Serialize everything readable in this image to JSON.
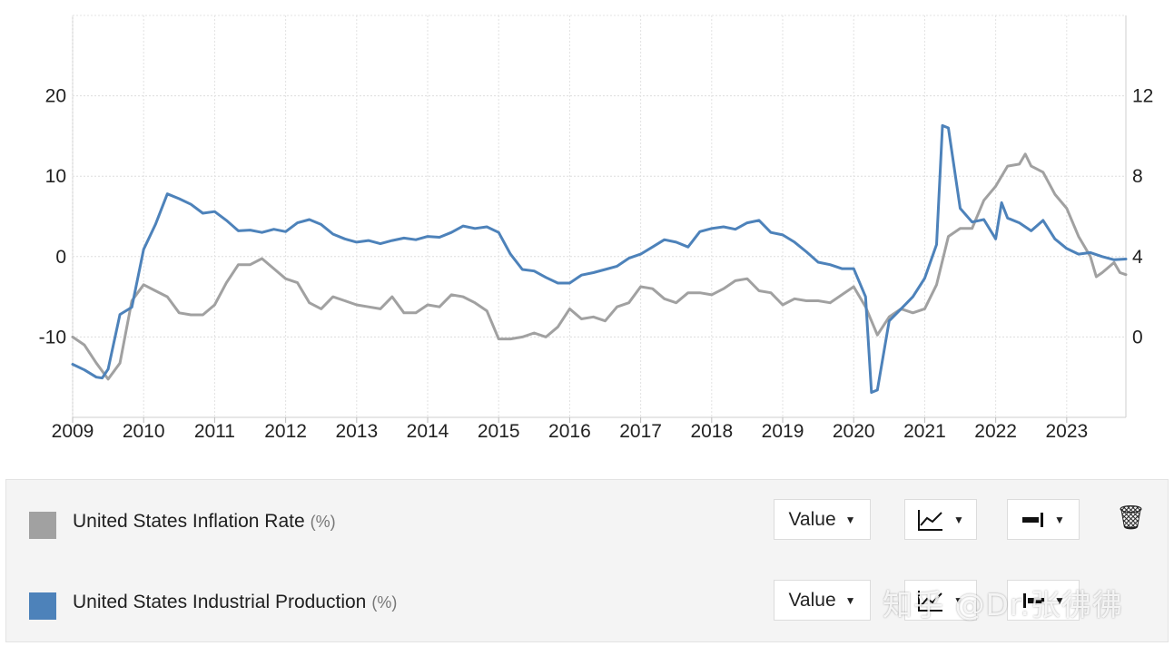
{
  "chart_data": {
    "type": "line",
    "x_axis": {
      "ticks": [
        "2009",
        "2010",
        "2011",
        "2012",
        "2013",
        "2014",
        "2015",
        "2016",
        "2017",
        "2018",
        "2019",
        "2020",
        "2021",
        "2022",
        "2023"
      ],
      "range": [
        "2009-01",
        "2023-11"
      ]
    },
    "y_axis_left": {
      "ticks": [
        "20",
        "10",
        "0",
        "-10"
      ],
      "range": [
        -20,
        30
      ]
    },
    "y_axis_right": {
      "ticks": [
        "12",
        "8",
        "4",
        "0"
      ],
      "range": [
        -4,
        16
      ]
    },
    "grid": true,
    "series": [
      {
        "name": "United States Inflation Rate",
        "unit": "%",
        "axis": "right",
        "color": "#a1a1a1",
        "points": [
          [
            "2009-01",
            0.0
          ],
          [
            "2009-03",
            -0.4
          ],
          [
            "2009-05",
            -1.3
          ],
          [
            "2009-07",
            -2.1
          ],
          [
            "2009-09",
            -1.3
          ],
          [
            "2009-11",
            1.8
          ],
          [
            "2010-01",
            2.6
          ],
          [
            "2010-03",
            2.3
          ],
          [
            "2010-05",
            2.0
          ],
          [
            "2010-07",
            1.2
          ],
          [
            "2010-09",
            1.1
          ],
          [
            "2010-11",
            1.1
          ],
          [
            "2011-01",
            1.6
          ],
          [
            "2011-03",
            2.7
          ],
          [
            "2011-05",
            3.6
          ],
          [
            "2011-07",
            3.6
          ],
          [
            "2011-09",
            3.9
          ],
          [
            "2011-11",
            3.4
          ],
          [
            "2012-01",
            2.9
          ],
          [
            "2012-03",
            2.7
          ],
          [
            "2012-05",
            1.7
          ],
          [
            "2012-07",
            1.4
          ],
          [
            "2012-09",
            2.0
          ],
          [
            "2012-11",
            1.8
          ],
          [
            "2013-01",
            1.6
          ],
          [
            "2013-03",
            1.5
          ],
          [
            "2013-05",
            1.4
          ],
          [
            "2013-07",
            2.0
          ],
          [
            "2013-09",
            1.2
          ],
          [
            "2013-11",
            1.2
          ],
          [
            "2014-01",
            1.6
          ],
          [
            "2014-03",
            1.5
          ],
          [
            "2014-05",
            2.1
          ],
          [
            "2014-07",
            2.0
          ],
          [
            "2014-09",
            1.7
          ],
          [
            "2014-11",
            1.3
          ],
          [
            "2015-01",
            -0.1
          ],
          [
            "2015-03",
            -0.1
          ],
          [
            "2015-05",
            0.0
          ],
          [
            "2015-07",
            0.2
          ],
          [
            "2015-09",
            0.0
          ],
          [
            "2015-11",
            0.5
          ],
          [
            "2016-01",
            1.4
          ],
          [
            "2016-03",
            0.9
          ],
          [
            "2016-05",
            1.0
          ],
          [
            "2016-07",
            0.8
          ],
          [
            "2016-09",
            1.5
          ],
          [
            "2016-11",
            1.7
          ],
          [
            "2017-01",
            2.5
          ],
          [
            "2017-03",
            2.4
          ],
          [
            "2017-05",
            1.9
          ],
          [
            "2017-07",
            1.7
          ],
          [
            "2017-09",
            2.2
          ],
          [
            "2017-11",
            2.2
          ],
          [
            "2018-01",
            2.1
          ],
          [
            "2018-03",
            2.4
          ],
          [
            "2018-05",
            2.8
          ],
          [
            "2018-07",
            2.9
          ],
          [
            "2018-09",
            2.3
          ],
          [
            "2018-11",
            2.2
          ],
          [
            "2019-01",
            1.6
          ],
          [
            "2019-03",
            1.9
          ],
          [
            "2019-05",
            1.8
          ],
          [
            "2019-07",
            1.8
          ],
          [
            "2019-09",
            1.7
          ],
          [
            "2019-11",
            2.1
          ],
          [
            "2020-01",
            2.5
          ],
          [
            "2020-03",
            1.5
          ],
          [
            "2020-05",
            0.1
          ],
          [
            "2020-07",
            1.0
          ],
          [
            "2020-09",
            1.4
          ],
          [
            "2020-11",
            1.2
          ],
          [
            "2021-01",
            1.4
          ],
          [
            "2021-03",
            2.6
          ],
          [
            "2021-05",
            5.0
          ],
          [
            "2021-07",
            5.4
          ],
          [
            "2021-09",
            5.4
          ],
          [
            "2021-11",
            6.8
          ],
          [
            "2022-01",
            7.5
          ],
          [
            "2022-03",
            8.5
          ],
          [
            "2022-05",
            8.6
          ],
          [
            "2022-06",
            9.1
          ],
          [
            "2022-07",
            8.5
          ],
          [
            "2022-09",
            8.2
          ],
          [
            "2022-11",
            7.1
          ],
          [
            "2023-01",
            6.4
          ],
          [
            "2023-03",
            5.0
          ],
          [
            "2023-05",
            4.0
          ],
          [
            "2023-06",
            3.0
          ],
          [
            "2023-07",
            3.2
          ],
          [
            "2023-09",
            3.7
          ],
          [
            "2023-10",
            3.2
          ],
          [
            "2023-11",
            3.1
          ]
        ]
      },
      {
        "name": "United States Industrial Production",
        "unit": "%",
        "axis": "left",
        "color": "#4d82ba",
        "points": [
          [
            "2009-01",
            -13.4
          ],
          [
            "2009-03",
            -14.1
          ],
          [
            "2009-05",
            -15.0
          ],
          [
            "2009-06",
            -15.1
          ],
          [
            "2009-07",
            -14.0
          ],
          [
            "2009-09",
            -7.2
          ],
          [
            "2009-11",
            -6.3
          ],
          [
            "2010-01",
            0.9
          ],
          [
            "2010-03",
            4.0
          ],
          [
            "2010-05",
            7.8
          ],
          [
            "2010-07",
            7.2
          ],
          [
            "2010-09",
            6.5
          ],
          [
            "2010-11",
            5.4
          ],
          [
            "2011-01",
            5.6
          ],
          [
            "2011-03",
            4.5
          ],
          [
            "2011-05",
            3.2
          ],
          [
            "2011-07",
            3.3
          ],
          [
            "2011-09",
            3.0
          ],
          [
            "2011-11",
            3.4
          ],
          [
            "2012-01",
            3.1
          ],
          [
            "2012-03",
            4.2
          ],
          [
            "2012-05",
            4.6
          ],
          [
            "2012-07",
            4.0
          ],
          [
            "2012-09",
            2.8
          ],
          [
            "2012-11",
            2.2
          ],
          [
            "2013-01",
            1.8
          ],
          [
            "2013-03",
            2.0
          ],
          [
            "2013-05",
            1.6
          ],
          [
            "2013-07",
            2.0
          ],
          [
            "2013-09",
            2.3
          ],
          [
            "2013-11",
            2.1
          ],
          [
            "2014-01",
            2.5
          ],
          [
            "2014-03",
            2.4
          ],
          [
            "2014-05",
            3.0
          ],
          [
            "2014-07",
            3.8
          ],
          [
            "2014-09",
            3.5
          ],
          [
            "2014-11",
            3.7
          ],
          [
            "2015-01",
            3.0
          ],
          [
            "2015-03",
            0.3
          ],
          [
            "2015-05",
            -1.6
          ],
          [
            "2015-07",
            -1.8
          ],
          [
            "2015-09",
            -2.6
          ],
          [
            "2015-11",
            -3.3
          ],
          [
            "2016-01",
            -3.3
          ],
          [
            "2016-03",
            -2.3
          ],
          [
            "2016-05",
            -2.0
          ],
          [
            "2016-07",
            -1.6
          ],
          [
            "2016-09",
            -1.2
          ],
          [
            "2016-11",
            -0.2
          ],
          [
            "2017-01",
            0.3
          ],
          [
            "2017-03",
            1.2
          ],
          [
            "2017-05",
            2.1
          ],
          [
            "2017-07",
            1.8
          ],
          [
            "2017-09",
            1.2
          ],
          [
            "2017-11",
            3.1
          ],
          [
            "2018-01",
            3.5
          ],
          [
            "2018-03",
            3.7
          ],
          [
            "2018-05",
            3.4
          ],
          [
            "2018-07",
            4.2
          ],
          [
            "2018-09",
            4.5
          ],
          [
            "2018-11",
            3.0
          ],
          [
            "2019-01",
            2.7
          ],
          [
            "2019-03",
            1.8
          ],
          [
            "2019-05",
            0.6
          ],
          [
            "2019-07",
            -0.7
          ],
          [
            "2019-09",
            -1.0
          ],
          [
            "2019-11",
            -1.5
          ],
          [
            "2020-01",
            -1.5
          ],
          [
            "2020-03",
            -5.0
          ],
          [
            "2020-04",
            -16.9
          ],
          [
            "2020-05",
            -16.6
          ],
          [
            "2020-07",
            -8.0
          ],
          [
            "2020-09",
            -6.5
          ],
          [
            "2020-11",
            -5.0
          ],
          [
            "2021-01",
            -2.7
          ],
          [
            "2021-03",
            1.5
          ],
          [
            "2021-04",
            16.3
          ],
          [
            "2021-05",
            16.0
          ],
          [
            "2021-07",
            6.0
          ],
          [
            "2021-09",
            4.3
          ],
          [
            "2021-11",
            4.6
          ],
          [
            "2022-01",
            2.2
          ],
          [
            "2022-02",
            6.7
          ],
          [
            "2022-03",
            4.8
          ],
          [
            "2022-05",
            4.2
          ],
          [
            "2022-07",
            3.2
          ],
          [
            "2022-09",
            4.5
          ],
          [
            "2022-11",
            2.2
          ],
          [
            "2023-01",
            1.0
          ],
          [
            "2023-03",
            0.3
          ],
          [
            "2023-05",
            0.5
          ],
          [
            "2023-07",
            0.0
          ],
          [
            "2023-09",
            -0.4
          ],
          [
            "2023-11",
            -0.3
          ]
        ]
      }
    ]
  },
  "legend": {
    "rows": [
      {
        "label": "United States Inflation Rate",
        "unit": "(%)",
        "color": "#a1a1a1",
        "value_label": "Value"
      },
      {
        "label": "United States Industrial Production",
        "unit": "(%)",
        "color": "#4d82ba",
        "value_label": "Value"
      }
    ],
    "caret": "▼",
    "trash_icon": "🗑"
  },
  "watermark": "知乎 @Dr.张彿彿"
}
